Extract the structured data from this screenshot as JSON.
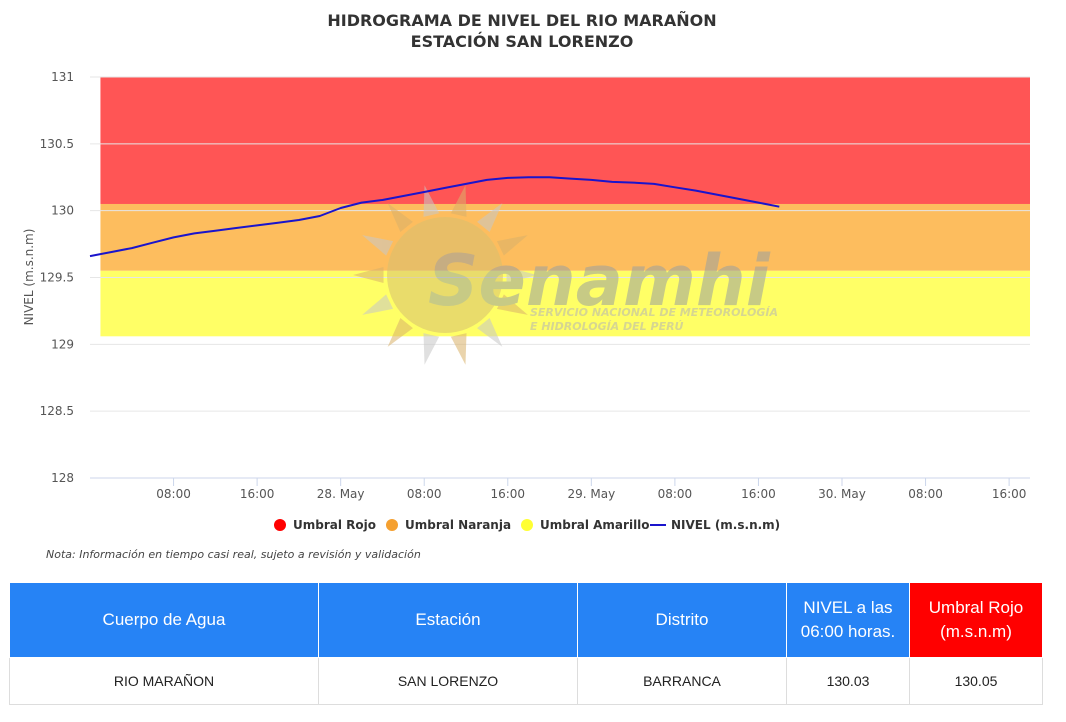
{
  "title": {
    "line1": "HIDROGRAMA DE NIVEL DEL RIO MARAÑON",
    "line2": "ESTACIÓN SAN LORENZO"
  },
  "chart_data": {
    "type": "line",
    "ylabel": "NIVEL (m.s.n.m)",
    "ylim": [
      128,
      131
    ],
    "y_ticks": [
      "131",
      "130.5",
      "130",
      "129.5",
      "129",
      "128.5",
      "128"
    ],
    "y_tick_values": [
      131,
      130.5,
      130,
      129.5,
      129,
      128.5,
      128
    ],
    "x_range_hours": [
      -6,
      84
    ],
    "x_ticks": [
      {
        "label": "08:00",
        "t": 2
      },
      {
        "label": "16:00",
        "t": 10
      },
      {
        "label": "28. May",
        "t": 18
      },
      {
        "label": "08:00",
        "t": 26
      },
      {
        "label": "16:00",
        "t": 34
      },
      {
        "label": "29. May",
        "t": 42
      },
      {
        "label": "08:00",
        "t": 50
      },
      {
        "label": "16:00",
        "t": 58
      },
      {
        "label": "30. May",
        "t": 66
      },
      {
        "label": "08:00",
        "t": 74
      },
      {
        "label": "16:00",
        "t": 82
      }
    ],
    "bands": [
      {
        "name": "Umbral Rojo",
        "from": 130.05,
        "to": 131,
        "color": "#ff5555"
      },
      {
        "name": "Umbral Naranja",
        "from": 129.55,
        "to": 130.05,
        "color": "#fdbd5e"
      },
      {
        "name": "Umbral Amarillo",
        "from": 129.06,
        "to": 129.55,
        "color": "#ffff66"
      }
    ],
    "band_span": [
      -5,
      84
    ],
    "series": [
      {
        "name": "NIVEL (m.s.n.m)",
        "color": "#1a14cc",
        "points": [
          [
            -6,
            129.66
          ],
          [
            -4,
            129.69
          ],
          [
            -2,
            129.72
          ],
          [
            0,
            129.76
          ],
          [
            2,
            129.8
          ],
          [
            4,
            129.83
          ],
          [
            6,
            129.85
          ],
          [
            8,
            129.87
          ],
          [
            10,
            129.89
          ],
          [
            12,
            129.91
          ],
          [
            14,
            129.93
          ],
          [
            16,
            129.96
          ],
          [
            18,
            130.02
          ],
          [
            20,
            130.06
          ],
          [
            22,
            130.08
          ],
          [
            24,
            130.11
          ],
          [
            26,
            130.14
          ],
          [
            28,
            130.17
          ],
          [
            30,
            130.2
          ],
          [
            32,
            130.23
          ],
          [
            34,
            130.245
          ],
          [
            36,
            130.25
          ],
          [
            38,
            130.25
          ],
          [
            40,
            130.24
          ],
          [
            42,
            130.23
          ],
          [
            44,
            130.215
          ],
          [
            46,
            130.21
          ],
          [
            48,
            130.2
          ],
          [
            50,
            130.175
          ],
          [
            52,
            130.15
          ],
          [
            54,
            130.12
          ],
          [
            56,
            130.09
          ],
          [
            58,
            130.06
          ],
          [
            60,
            130.03
          ]
        ]
      }
    ],
    "legend": [
      {
        "label": "Umbral Rojo",
        "color": "#ff0000",
        "kind": "dot"
      },
      {
        "label": "Umbral Naranja",
        "color": "#f5a030",
        "kind": "dot"
      },
      {
        "label": "Umbral Amarillo",
        "color": "#ffff33",
        "kind": "dot"
      },
      {
        "label": "NIVEL (m.s.n.m)",
        "color": "#1a14cc",
        "kind": "line"
      }
    ],
    "legend_position": "bottom"
  },
  "watermark": {
    "brand": "Senamhi",
    "line1": "SERVICIO NACIONAL DE METEOROLOGÍA",
    "line2": "E HIDROLOGÍA DEL PERÚ"
  },
  "note": "Nota: Información en tiempo casi real, sujeto a revisión y validación",
  "table": {
    "headers": [
      "Cuerpo de Agua",
      "Estación",
      "Distrito",
      "NIVEL a las 06:00 horas.",
      "Umbral Rojo (m.s.n.m)"
    ],
    "rows": [
      [
        "RIO MARAÑON",
        "SAN LORENZO",
        "BARRANCA",
        "130.03",
        "130.05"
      ]
    ]
  }
}
